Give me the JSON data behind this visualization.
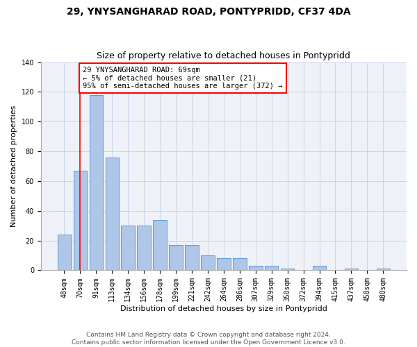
{
  "title1": "29, YNYSANGHARAD ROAD, PONTYPRIDD, CF37 4DA",
  "title2": "Size of property relative to detached houses in Pontypridd",
  "xlabel": "Distribution of detached houses by size in Pontypridd",
  "ylabel": "Number of detached properties",
  "categories": [
    "48sqm",
    "70sqm",
    "91sqm",
    "113sqm",
    "134sqm",
    "156sqm",
    "178sqm",
    "199sqm",
    "221sqm",
    "242sqm",
    "264sqm",
    "286sqm",
    "307sqm",
    "329sqm",
    "350sqm",
    "372sqm",
    "394sqm",
    "415sqm",
    "437sqm",
    "458sqm",
    "480sqm"
  ],
  "values": [
    24,
    67,
    118,
    76,
    30,
    30,
    34,
    17,
    17,
    10,
    8,
    8,
    3,
    3,
    1,
    0,
    3,
    0,
    1,
    0,
    1
  ],
  "bar_color": "#aec6e8",
  "bar_edge_color": "#5b9bd5",
  "annotation_line1": "29 YNYSANGHARAD ROAD: 69sqm",
  "annotation_line2": "← 5% of detached houses are smaller (21)",
  "annotation_line3": "95% of semi-detached houses are larger (372) →",
  "vline_x": 1,
  "annotation_box_color": "white",
  "annotation_box_edge_color": "red",
  "vline_color": "red",
  "ylim": [
    0,
    140
  ],
  "yticks": [
    0,
    20,
    40,
    60,
    80,
    100,
    120,
    140
  ],
  "footer": "Contains HM Land Registry data © Crown copyright and database right 2024.\nContains public sector information licensed under the Open Government Licence v3.0.",
  "title1_fontsize": 10,
  "title2_fontsize": 9,
  "xlabel_fontsize": 8,
  "ylabel_fontsize": 8,
  "tick_fontsize": 7,
  "annotation_fontsize": 7.5,
  "footer_fontsize": 6.5
}
